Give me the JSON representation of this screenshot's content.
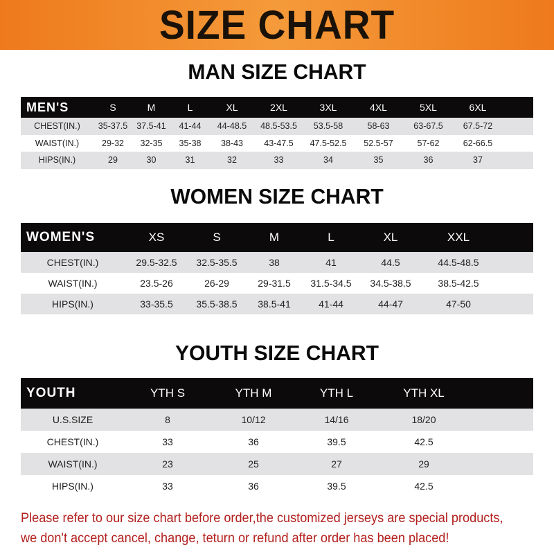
{
  "banner": {
    "title": "SIZE CHART",
    "color": "#ee7a1c"
  },
  "men": {
    "title": "MAN SIZE CHART",
    "header": [
      "MEN'S",
      "S",
      "M",
      "L",
      "XL",
      "2XL",
      "3XL",
      "4XL",
      "5XL",
      "6XL"
    ],
    "rows": [
      [
        "CHEST(IN.)",
        "35-37.5",
        "37.5-41",
        "41-44",
        "44-48.5",
        "48.5-53.5",
        "53.5-58",
        "58-63",
        "63-67.5",
        "67.5-72"
      ],
      [
        "WAIST(IN.)",
        "29-32",
        "32-35",
        "35-38",
        "38-43",
        "43-47.5",
        "47.5-52.5",
        "52.5-57",
        "57-62",
        "62-66.5"
      ],
      [
        "HIPS(IN.)",
        "29",
        "30",
        "31",
        "32",
        "33",
        "34",
        "35",
        "36",
        "37"
      ]
    ]
  },
  "women": {
    "title": "WOMEN SIZE CHART",
    "header": [
      "WOMEN'S",
      "XS",
      "S",
      "M",
      "L",
      "XL",
      "XXL"
    ],
    "rows": [
      [
        "CHEST(IN.)",
        "29.5-32.5",
        "32.5-35.5",
        "38",
        "41",
        "44.5",
        "44.5-48.5"
      ],
      [
        "WAIST(IN.)",
        "23.5-26",
        "26-29",
        "29-31.5",
        "31.5-34.5",
        "34.5-38.5",
        "38.5-42.5"
      ],
      [
        "HIPS(IN.)",
        "33-35.5",
        "35.5-38.5",
        "38.5-41",
        "41-44",
        "44-47",
        "47-50"
      ]
    ]
  },
  "youth": {
    "title": "YOUTH SIZE CHART",
    "header": [
      "YOUTH",
      "YTH S",
      "YTH M",
      "YTH L",
      "YTH XL"
    ],
    "rows": [
      [
        "U.S.SIZE",
        "8",
        "10/12",
        "14/16",
        "18/20"
      ],
      [
        "CHEST(IN.)",
        "33",
        "36",
        "39.5",
        "42.5"
      ],
      [
        "WAIST(IN.)",
        "23",
        "25",
        "27",
        "29"
      ],
      [
        "HIPS(IN.)",
        "33",
        "36",
        "39.5",
        "42.5"
      ]
    ]
  },
  "notice": {
    "line1": "Please refer to our size chart before order,the customized jerseys are special products,",
    "line2": "we don't accept cancel, change, teturn or refund after order has been placed!",
    "color": "#b3201e"
  }
}
